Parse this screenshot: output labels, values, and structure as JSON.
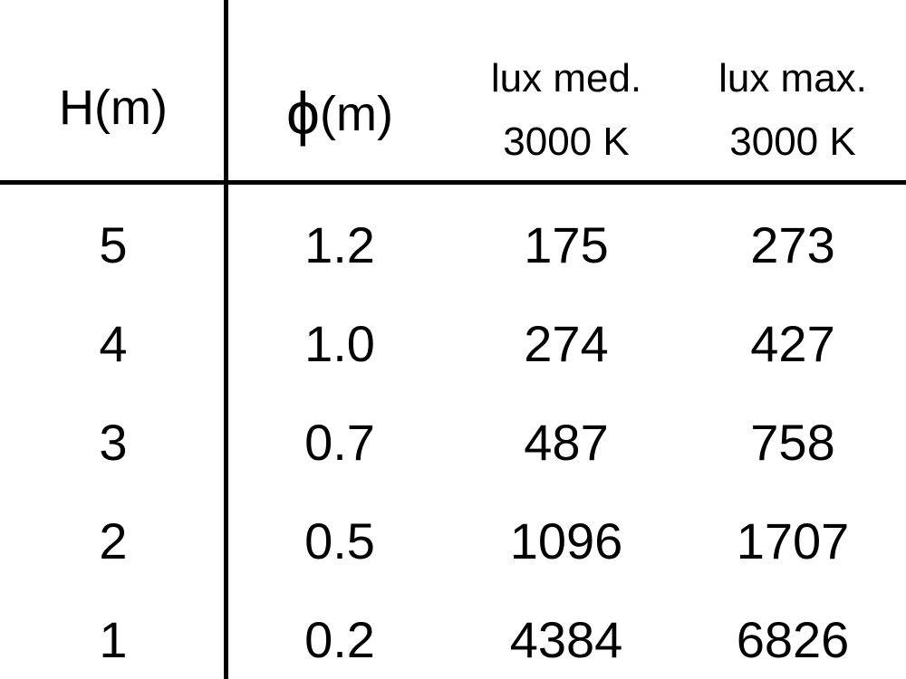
{
  "chart_data": {
    "type": "table",
    "columns": [
      {
        "label": "H(m)"
      },
      {
        "symbol": "ϕ",
        "label": "(m)"
      },
      {
        "label_line1": "lux med.",
        "label_line2": "3000 K"
      },
      {
        "label_line1": "lux max.",
        "label_line2": "3000 K"
      }
    ],
    "rows": [
      [
        "5",
        "1.2",
        "175",
        "273"
      ],
      [
        "4",
        "1.0",
        "274",
        "427"
      ],
      [
        "3",
        "0.7",
        "487",
        "758"
      ],
      [
        "2",
        "0.5",
        "1096",
        "1707"
      ],
      [
        "1",
        "0.2",
        "4384",
        "6826"
      ]
    ]
  }
}
